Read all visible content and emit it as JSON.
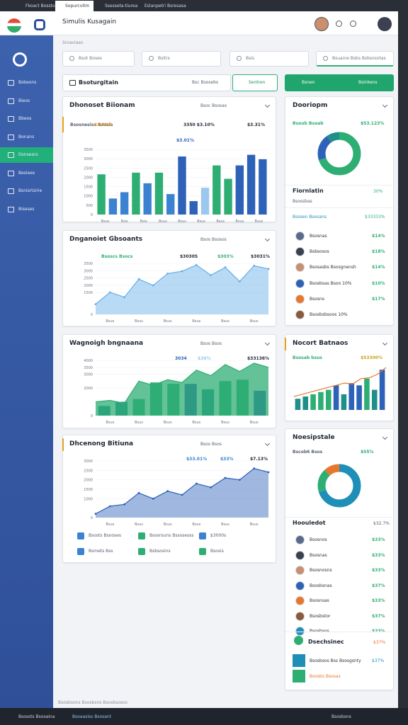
{
  "browser": {
    "tabs": [
      "Fkoact Bosstona",
      "Sopurcvitm",
      "Ssesseta-tiurea",
      "Eslanpetri Bsresasa"
    ]
  },
  "header": {
    "title": "Simulis Kusagain",
    "breadcrumb": "Sroaviaes"
  },
  "sidebar": {
    "items": [
      "Bsbeons",
      "Bieos",
      "Bbeos",
      "Bonans",
      "Dsnsears",
      "Besiees",
      "Bsnisrtsirie",
      "Biseses"
    ],
    "active": 4
  },
  "filters": [
    "Bsot Boses",
    "Bsitrs",
    "Bsis",
    "Bsuaine Bsbs Bsbsosotas"
  ],
  "toolbar": {
    "search": "Bsoturgitain",
    "hint": "Bsc Bsosebs",
    "button": "Sentren",
    "action": "Bsnen",
    "action_right": "Bsinkens"
  },
  "cards": [
    {
      "title": "Dhonoset Biionam",
      "menu": "Bsoc Bsosas",
      "stats": [
        {
          "text": "Bsosnesiss Bsosis",
          "color": "#56606d"
        },
        {
          "text": "$3.31%",
          "color": "#e8a21d"
        },
        {
          "text": "3350 $3.10%",
          "color": "#1f2733"
        },
        {
          "text": "$3.31%",
          "color": "#1f2733"
        }
      ],
      "legend": "$3.01%",
      "chart": {
        "ylim": [
          0,
          3500
        ],
        "yticks": [
          0,
          500,
          1000,
          1500,
          2000,
          2500,
          3000,
          3500
        ],
        "xlabels": [
          "Bsus",
          "Bsis",
          "Bsis",
          "Bsus",
          "Bsus",
          "Bsus",
          "Bsus",
          "Bsus",
          "Bsus"
        ],
        "series": [
          {
            "type": "bar",
            "colors": [
              "#2fae74",
              "#3b82d0",
              "#3b82d0",
              "#2fae74",
              "#3b82d0",
              "#2fae74",
              "#3b82d0",
              "#2d62b8",
              "#2d62b8",
              "#9cc8f0",
              "#2fae74",
              "#2fae74",
              "#2d62b8",
              "#2d62b8",
              "#2d62b8"
            ],
            "values": [
              2160,
              860,
              1200,
              2250,
              1680,
              2250,
              1100,
              3120,
              720,
              1440,
              2640,
              1920,
              2640,
              3210,
              2970
            ]
          }
        ]
      }
    },
    {
      "title": "Dnganoiet Gbsoants",
      "menu": "Bsos Bsosos",
      "stats": [
        {
          "text": "Bsoscs Bsocs",
          "color": "#2fae74"
        },
        {
          "text": "$3030S",
          "color": "#1f2733"
        },
        {
          "text": "$303%",
          "color": "#2fae74"
        },
        {
          "text": "$3031%",
          "color": "#1f2733"
        }
      ],
      "chart": {
        "ylim": [
          0,
          3500
        ],
        "yticks": [
          0,
          1500,
          2000,
          2500,
          3000,
          3500
        ],
        "xlabels": [
          "Bsus",
          "Bsus",
          "Bsus",
          "Bsus",
          "Bsus",
          "Bsus"
        ],
        "series": [
          {
            "type": "area",
            "color": "#64aee8",
            "values": [
              700,
              1510,
              1180,
              2420,
              1990,
              2800,
              2960,
              3390,
              2690,
              3230,
              2260,
              3340,
              3120
            ]
          }
        ]
      }
    },
    {
      "title": "Wagnoigh bngnaana",
      "menu": "Bsos Bsos",
      "stats": [
        {
          "text": "3034",
          "color": "#2d62b8"
        },
        {
          "text": "$30%",
          "color": "#9cc8f0"
        },
        {
          "text": "$33136%",
          "color": "#1f2733"
        }
      ],
      "chart": {
        "ylim": [
          0,
          4000
        ],
        "yticks": [
          0,
          2000,
          3000,
          3500,
          4000
        ],
        "xlabels": [
          "Bsus",
          "Bsus",
          "Bsus",
          "Bsus",
          "Bsus",
          "Bsus"
        ],
        "series": [
          {
            "type": "bar",
            "colors": [
              "#1f8f8a",
              "#1f8f8a",
              "#2fae74",
              "#2fae74",
              "#2fae74",
              "#2d62b8",
              "#1f8f8a",
              "#2fae74",
              "#2fae74",
              "#2d62b8"
            ],
            "values": [
              700,
              1000,
              1200,
              2400,
              2300,
              2300,
              1900,
              2500,
              2600,
              1800
            ]
          },
          {
            "type": "area",
            "color": "#2fae74",
            "values": [
              1000,
              1100,
              900,
              2500,
              2200,
              2600,
              2400,
              3300,
              2900,
              3700,
              3200,
              3800,
              3500
            ]
          }
        ]
      }
    },
    {
      "title": "Dhcenong Bitiuna",
      "menu": "Bsos Bsos",
      "stats": [
        {
          "text": "$33.01%",
          "color": "#3b82d0"
        },
        {
          "text": "$33%",
          "color": "#3b82d0"
        },
        {
          "text": "$7.13%",
          "color": "#1f2733"
        }
      ],
      "chart": {
        "ylim": [
          0,
          3000
        ],
        "yticks": [
          0,
          1000,
          1500,
          2000,
          2500,
          3000
        ],
        "xlabels": [
          "Bsus",
          "Bsus",
          "Bsus",
          "Bsus",
          "Bsus",
          "Bsus"
        ],
        "series": [
          {
            "type": "area",
            "color": "#2d62b8",
            "values": [
              200,
              600,
              700,
              1300,
              1000,
              1400,
              1200,
              1800,
              1600,
              2100,
              2000,
              2600,
              2400
            ]
          }
        ]
      },
      "legend": [
        {
          "text": "Bsosts Bsooses",
          "color": "#3b82d0"
        },
        {
          "text": "Bsosrsuns Bssosesss",
          "color": "#2fae74"
        },
        {
          "text": "$3000s",
          "color": "#3b82d0"
        },
        {
          "text": "Bsmets Bss",
          "color": "#3b82d0"
        },
        {
          "text": "Bsbsosins",
          "color": "#2fae74"
        },
        {
          "text": "Bsosis",
          "color": "#2fae74"
        }
      ]
    }
  ],
  "side": [
    {
      "title": "Dooriopm",
      "stats": [
        {
          "text": "Bsoub Bsoab",
          "color": "#2fae74"
        },
        {
          "text": "$53.123%",
          "color": "#2fae74"
        }
      ],
      "donut": {
        "values": [
          70,
          20,
          10
        ],
        "colors": [
          "#2fae74",
          "#2d62b8",
          "#1f8f8a"
        ]
      },
      "section": {
        "title": "Fiornlatin",
        "value": "30%",
        "sub": "Bsossbas",
        "row": "Bsosen Bsosans",
        "row_value": "$33333%"
      },
      "items": [
        {
          "name": "Bsosnas",
          "value": "$14%",
          "color": "#2fae74"
        },
        {
          "name": "Bsbsosos",
          "value": "$18%",
          "color": "#2fae74"
        },
        {
          "name": "Bsosasbs Bsosgnensh",
          "value": "$14%",
          "color": "#2fae74"
        },
        {
          "name": "Bsosbsas Bsoo 10%",
          "value": "$10%",
          "color": "#2fae74"
        },
        {
          "name": "Bsosns",
          "value": "$17%",
          "color": "#2fae74"
        },
        {
          "name": "Bsosbsbsoos 10%",
          "value": "",
          "color": "#2fae74"
        }
      ]
    },
    {
      "title": "Nocort Batnaos",
      "stats": [
        {
          "text": "Bsosab bsus",
          "color": "#2fae74"
        },
        {
          "text": "$53300%",
          "color": "#c9a21d"
        }
      ],
      "chart": {
        "series": [
          {
            "type": "bar",
            "colors": [
              "#1f8f8a",
              "#1f8f8a",
              "#2fae74",
              "#2fae74",
              "#2fae74",
              "#2d62b8",
              "#1f8f8a",
              "#2d62b8",
              "#2d62b8",
              "#2fae74",
              "#1f8f8a",
              "#2d62b8"
            ],
            "values": [
              25,
              30,
              35,
              40,
              45,
              55,
              35,
              60,
              55,
              70,
              45,
              90
            ]
          },
          {
            "type": "line",
            "color": "#e8772e",
            "values": [
              30,
              35,
              40,
              45,
              50,
              55,
              60,
              58,
              70,
              72,
              80,
              95
            ]
          }
        ]
      }
    },
    {
      "title": "Noesipstale",
      "stats": [
        {
          "text": "Bscob6 Bsos",
          "color": "#56606d"
        },
        {
          "text": "$55%",
          "color": "#2fae74"
        }
      ],
      "donut": {
        "values": [
          70,
          18,
          12
        ],
        "colors": [
          "#1f8fb8",
          "#2fae74",
          "#e8772e"
        ]
      },
      "section": {
        "title": "Hoouledot",
        "value": "$32.7%"
      },
      "items": [
        {
          "name": "Bsosnos",
          "value": "$33%",
          "color": "#2fae74"
        },
        {
          "name": "Bsosnas",
          "value": "$33%",
          "color": "#2fae74"
        },
        {
          "name": "Bsosnosns",
          "value": "$33%",
          "color": "#2fae74"
        },
        {
          "name": "Bsosbsnas",
          "value": "$37%",
          "color": "#2fae74"
        },
        {
          "name": "Bsosnsas",
          "value": "$33%",
          "color": "#2fae74"
        },
        {
          "name": "Bsosbstor",
          "value": "$37%",
          "color": "#2fae74"
        },
        {
          "name": "Bsosbsos",
          "value": "$33%",
          "color": "#2fae74"
        }
      ],
      "section2": {
        "title": "Dsechsinec",
        "value": "$37%",
        "rows": [
          {
            "text": "Bsosbsos Bss Bsosgsnty",
            "value": "$37%",
            "color": "#1f8fb8"
          },
          {
            "text": "Bsosbs Bsosas",
            "value": "",
            "color": "#2fae74"
          }
        ]
      }
    }
  ],
  "footer": {
    "text": "Bsosbsons Bsosbsns Bsosbsosos",
    "left": "Bsossts Bsosaina",
    "center": "Bsoaasiss Bsosant",
    "right": "Bsosbsns"
  }
}
